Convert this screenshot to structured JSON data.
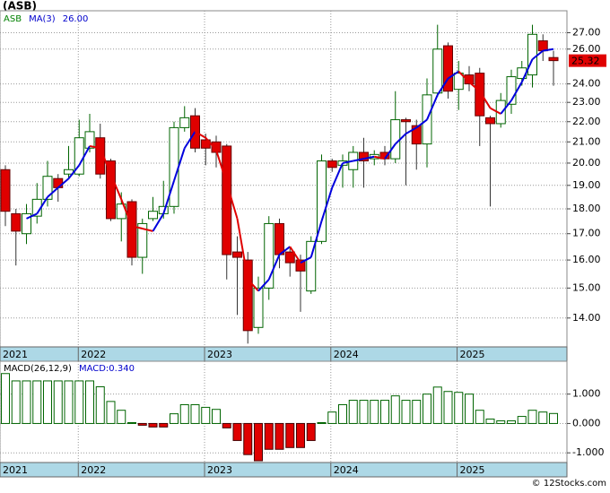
{
  "title": "(ASB)",
  "copyright": "© 12Stocks.com",
  "chart_data": [
    {
      "type": "candlestick",
      "log": true,
      "grid": true,
      "legend": [
        {
          "text": "ASB",
          "color": "#008000"
        },
        {
          "text": "MA(3)",
          "color": "#0000cc"
        },
        {
          "value": 26.0,
          "label": "26.00",
          "color": "#0000cc"
        }
      ],
      "up_color": "#006400",
      "down_color": "#e00000",
      "ma_up_color": "#0000dd",
      "ma_down_color": "#e00000",
      "open": [
        19.7,
        17.8,
        17.0,
        17.7,
        18.4,
        19.3,
        19.5,
        19.5,
        20.7,
        21.2,
        20.1,
        17.6,
        18.3,
        16.1,
        17.6,
        17.8,
        18.1,
        21.7,
        22.3,
        21.1,
        21.0,
        20.8,
        16.3,
        16.0,
        13.7,
        15.0,
        17.4,
        16.3,
        16.0,
        14.9,
        16.7,
        20.1,
        19.9,
        19.7,
        20.5,
        20.2,
        20.5,
        20.2,
        22.1,
        21.8,
        20.9,
        23.5,
        26.2,
        23.7,
        24.5,
        24.6,
        22.2,
        21.9,
        22.9,
        24.3,
        24.5,
        26.5,
        25.5
      ],
      "high": [
        19.9,
        18.0,
        18.2,
        19.1,
        20.1,
        19.5,
        20.8,
        22.1,
        22.4,
        21.9,
        20.2,
        18.7,
        18.4,
        17.6,
        18.5,
        19.2,
        22.0,
        22.8,
        22.7,
        21.4,
        21.3,
        20.9,
        16.9,
        16.3,
        15.4,
        17.7,
        17.6,
        16.5,
        16.2,
        16.9,
        20.4,
        20.2,
        20.4,
        20.8,
        21.2,
        20.6,
        20.8,
        23.6,
        22.2,
        22.1,
        24.3,
        27.5,
        26.4,
        25.3,
        25.0,
        24.9,
        22.3,
        23.5,
        24.8,
        25.3,
        27.5,
        26.9,
        25.9
      ],
      "low": [
        17.3,
        15.8,
        16.6,
        17.4,
        18.1,
        18.3,
        19.3,
        19.4,
        20.5,
        19.3,
        17.5,
        16.7,
        15.8,
        15.5,
        17.5,
        17.6,
        17.8,
        21.5,
        20.5,
        19.9,
        19.8,
        15.3,
        14.1,
        13.2,
        13.5,
        14.6,
        15.7,
        15.4,
        14.2,
        14.8,
        16.6,
        19.6,
        18.9,
        18.9,
        18.9,
        19.9,
        19.9,
        20.0,
        19.0,
        19.7,
        19.8,
        23.3,
        23.2,
        22.6,
        23.6,
        20.8,
        18.1,
        21.7,
        22.4,
        23.9,
        23.8,
        25.3,
        23.9
      ],
      "close": [
        17.9,
        17.1,
        17.8,
        18.4,
        19.4,
        18.9,
        19.7,
        21.2,
        21.5,
        19.5,
        17.6,
        18.2,
        16.1,
        17.4,
        17.9,
        18.1,
        21.7,
        22.2,
        20.7,
        20.7,
        20.5,
        16.2,
        16.1,
        13.6,
        15.0,
        17.4,
        16.2,
        15.9,
        15.6,
        16.7,
        20.1,
        19.8,
        20.1,
        20.5,
        20.1,
        20.4,
        20.2,
        22.1,
        22.0,
        20.9,
        23.4,
        26.0,
        23.6,
        24.6,
        24.0,
        22.3,
        21.9,
        23.1,
        24.4,
        24.9,
        26.9,
        25.9,
        25.32
      ],
      "ma": [
        null,
        null,
        17.6,
        17.8,
        18.5,
        18.9,
        19.3,
        19.9,
        20.8,
        20.7,
        19.5,
        18.4,
        17.3,
        17.2,
        17.1,
        17.8,
        19.2,
        20.7,
        21.5,
        21.2,
        20.6,
        19.1,
        17.6,
        15.3,
        14.9,
        15.3,
        16.2,
        16.5,
        15.9,
        16.1,
        17.5,
        18.9,
        20.0,
        20.1,
        20.2,
        20.3,
        20.2,
        20.9,
        21.4,
        21.7,
        22.1,
        23.4,
        24.3,
        24.7,
        24.1,
        23.6,
        22.7,
        22.4,
        23.1,
        24.1,
        25.4,
        25.9,
        26.0
      ],
      "ylim": [
        13.1,
        28.4
      ],
      "yticks": [
        {
          "value": 14,
          "label": "14.00"
        },
        {
          "value": 15,
          "label": "15.00"
        },
        {
          "value": 16,
          "label": "16.00"
        },
        {
          "value": 17,
          "label": "17.00"
        },
        {
          "value": 18,
          "label": "18.00"
        },
        {
          "value": 19,
          "label": "19.00"
        },
        {
          "value": 20,
          "label": "20.00"
        },
        {
          "value": 21,
          "label": "21.00"
        },
        {
          "value": 22,
          "label": "22.00"
        },
        {
          "value": 23,
          "label": "23.00"
        },
        {
          "value": 24,
          "label": "24.00"
        },
        {
          "value": 26,
          "label": "26.00"
        },
        {
          "value": 27,
          "label": "27.00"
        }
      ],
      "xlim": [
        2021.38,
        2025.87
      ],
      "xticks": [
        {
          "value": 2021.38,
          "label": "2021"
        },
        2022,
        2023,
        2024,
        2025
      ]
    },
    {
      "type": "bar",
      "grid": true,
      "legend": [
        {
          "text": "MACD(26,12,9)",
          "color": "#000000"
        },
        {
          "value": 0.34,
          "label": "MACD:0.340",
          "color": "#0000cc"
        }
      ],
      "pos_color": "#006400",
      "neg_color": "#e00000",
      "values": [
        1.7,
        1.45,
        1.45,
        1.45,
        1.45,
        1.45,
        1.45,
        1.45,
        1.45,
        1.25,
        0.75,
        0.45,
        0.03,
        -0.06,
        -0.12,
        -0.12,
        0.33,
        0.64,
        0.64,
        0.55,
        0.48,
        -0.15,
        -0.58,
        -1.06,
        -1.27,
        -0.88,
        -0.88,
        -0.82,
        -0.82,
        -0.58,
        0.03,
        0.39,
        0.64,
        0.79,
        0.79,
        0.79,
        0.79,
        0.94,
        0.79,
        0.79,
        1.0,
        1.24,
        1.09,
        1.06,
        1.0,
        0.45,
        0.15,
        0.09,
        0.09,
        0.24,
        0.45,
        0.39,
        0.34
      ],
      "ylim": [
        -1.33,
        2.12
      ],
      "yticks": [
        {
          "value": -1,
          "label": "-1.000"
        },
        {
          "value": 0,
          "label": "0.000"
        },
        {
          "value": 1,
          "label": "1.000"
        }
      ],
      "xlim": [
        2021.38,
        2025.87
      ],
      "xticks": [
        {
          "value": 2021.38,
          "label": "2021"
        },
        2022,
        2023,
        2024,
        2025
      ]
    }
  ]
}
